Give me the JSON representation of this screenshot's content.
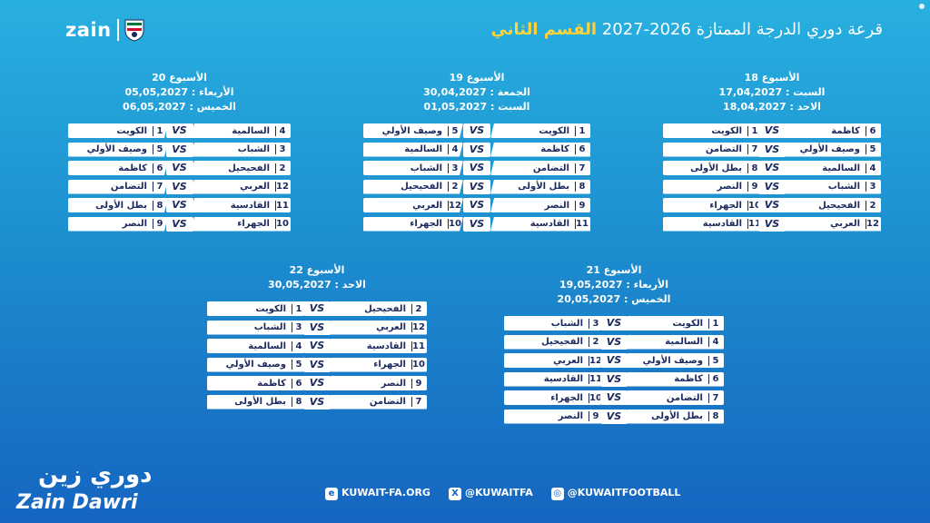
{
  "header": {
    "title_prefix": "قرعة دوري الدرجة الممتازة 2026-2027",
    "division": "القسم الثاني",
    "brand": "zain"
  },
  "icons": {
    "crest": "kuwait-fa-crest-icon",
    "web": "web-icon",
    "x": "x-icon",
    "instagram": "instagram-icon"
  },
  "weeks": [
    {
      "title": "الأسبوع 18",
      "dates": [
        "السبت : 17,04,2027",
        "الاحد : 18,04,2027"
      ],
      "matches": [
        {
          "home_num": "6",
          "home": "كاظمة",
          "away": "الكويت",
          "away_num": "1"
        },
        {
          "home_num": "5",
          "home": "وصيف الأولي",
          "away": "التضامن",
          "away_num": "7"
        },
        {
          "home_num": "4",
          "home": "السالمية",
          "away": "بطل الأولى",
          "away_num": "8"
        },
        {
          "home_num": "3",
          "home": "الشباب",
          "away": "النصر",
          "away_num": "9"
        },
        {
          "home_num": "2",
          "home": "الفحيحيل",
          "away": "الجهراء",
          "away_num": "10"
        },
        {
          "home_num": "12",
          "home": "العربي",
          "away": "القادسية",
          "away_num": "11"
        }
      ]
    },
    {
      "title": "الأسبوع 19",
      "dates": [
        "الجمعة : 30,04,2027",
        "السبت : 01,05,2027"
      ],
      "matches": [
        {
          "home_num": "1",
          "home": "الكويت",
          "away": "وصيف الأولي",
          "away_num": "5"
        },
        {
          "home_num": "6",
          "home": "كاظمة",
          "away": "السالمية",
          "away_num": "4"
        },
        {
          "home_num": "7",
          "home": "التضامن",
          "away": "الشباب",
          "away_num": "3"
        },
        {
          "home_num": "8",
          "home": "بطل الأولى",
          "away": "الفحيحيل",
          "away_num": "2"
        },
        {
          "home_num": "9",
          "home": "النصر",
          "away": "العربي",
          "away_num": "12"
        },
        {
          "home_num": "11",
          "home": "القادسية",
          "away": "الجهراء",
          "away_num": "10"
        }
      ]
    },
    {
      "title": "الأسبوع 20",
      "dates": [
        "الأربعاء : 05,05,2027",
        "الخميس : 06,05,2027"
      ],
      "matches": [
        {
          "home_num": "4",
          "home": "السالمية",
          "away": "الكويت",
          "away_num": "1"
        },
        {
          "home_num": "3",
          "home": "الشباب",
          "away": "وصيف الأولي",
          "away_num": "5"
        },
        {
          "home_num": "2",
          "home": "الفحيحيل",
          "away": "كاظمة",
          "away_num": "6"
        },
        {
          "home_num": "12",
          "home": "العربي",
          "away": "التضامن",
          "away_num": "7"
        },
        {
          "home_num": "11",
          "home": "القادسية",
          "away": "بطل الأولى",
          "away_num": "8"
        },
        {
          "home_num": "10",
          "home": "الجهراء",
          "away": "النصر",
          "away_num": "9"
        }
      ]
    },
    {
      "title": "الأسبوع 21",
      "dates": [
        "الأربعاء : 19,05,2027",
        "الخميس : 20,05,2027"
      ],
      "matches": [
        {
          "home_num": "1",
          "home": "الكويت",
          "away": "الشباب",
          "away_num": "3"
        },
        {
          "home_num": "4",
          "home": "السالمية",
          "away": "الفحيحيل",
          "away_num": "2"
        },
        {
          "home_num": "5",
          "home": "وصيف الأولي",
          "away": "العربي",
          "away_num": "12"
        },
        {
          "home_num": "6",
          "home": "كاظمة",
          "away": "القادسية",
          "away_num": "11"
        },
        {
          "home_num": "7",
          "home": "التضامن",
          "away": "الجهراء",
          "away_num": "10"
        },
        {
          "home_num": "8",
          "home": "بطل الأولى",
          "away": "النصر",
          "away_num": "9"
        }
      ]
    },
    {
      "title": "الأسبوع 22",
      "dates": [
        "الاحد : 30,05,2027"
      ],
      "matches": [
        {
          "home_num": "2",
          "home": "الفحيحيل",
          "away": "الكويت",
          "away_num": "1"
        },
        {
          "home_num": "12",
          "home": "العربي",
          "away": "الشباب",
          "away_num": "3"
        },
        {
          "home_num": "11",
          "home": "القادسية",
          "away": "السالمية",
          "away_num": "4"
        },
        {
          "home_num": "10",
          "home": "الجهراء",
          "away": "وصيف الأولي",
          "away_num": "5"
        },
        {
          "home_num": "9",
          "home": "النصر",
          "away": "كاظمة",
          "away_num": "6"
        },
        {
          "home_num": "7",
          "home": "التضامن",
          "away": "بطل الأولى",
          "away_num": "8"
        }
      ]
    }
  ],
  "vs_label": "VS",
  "footer": {
    "website": "KUWAIT-FA.ORG",
    "x_handle": "@KUWAITFA",
    "instagram": "@KUWAITFOOTBALL"
  },
  "brand_bottom": {
    "arabic": "دوري زين",
    "english": "Zain Dawri"
  }
}
